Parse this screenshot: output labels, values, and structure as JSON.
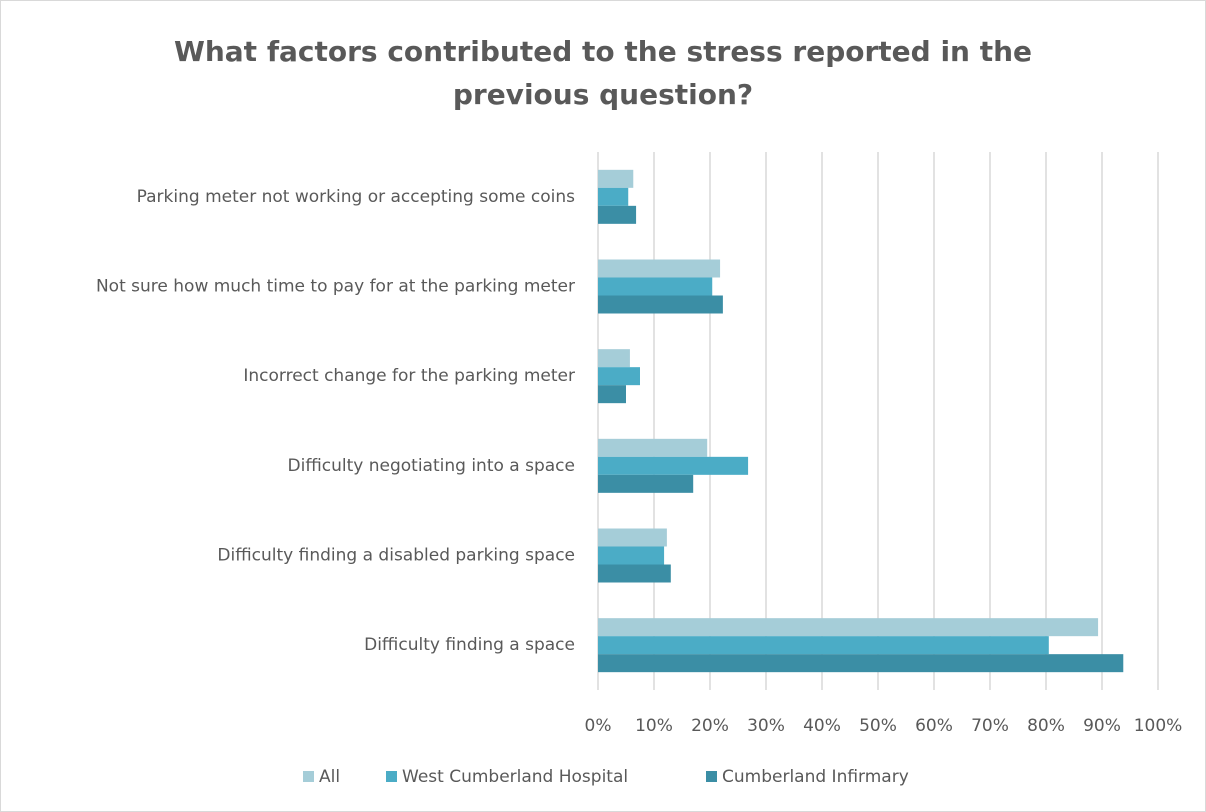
{
  "chart_data": {
    "type": "hbar",
    "title": "What factors contributed to the stress reported in the previous question?",
    "categories": [
      "Parking meter not working or accepting some coins",
      "Not sure how much time to pay for at the parking meter",
      "Incorrect change for the parking meter",
      "Difficulty negotiating into a space",
      "Difficulty finding a disabled parking space",
      "Difficulty finding a space"
    ],
    "series": [
      {
        "name": "All",
        "color": "#a5cdd8",
        "values": [
          6.3,
          21.8,
          5.7,
          19.5,
          12.3,
          89.3
        ]
      },
      {
        "name": "West Cumberland Hospital",
        "color": "#4bacc6",
        "values": [
          5.4,
          20.4,
          7.5,
          26.8,
          11.8,
          80.5
        ]
      },
      {
        "name": "Cumberland Infirmary",
        "color": "#3b8ea5",
        "values": [
          6.8,
          22.3,
          5.0,
          17.0,
          13.0,
          93.8
        ]
      }
    ],
    "xlim": [
      0,
      100
    ],
    "xticks": [
      {
        "value": 0,
        "label": "0%"
      },
      {
        "value": 10,
        "label": "10%"
      },
      {
        "value": 20,
        "label": "20%"
      },
      {
        "value": 30,
        "label": "30%"
      },
      {
        "value": 40,
        "label": "40%"
      },
      {
        "value": 50,
        "label": "50%"
      },
      {
        "value": 60,
        "label": "60%"
      },
      {
        "value": 70,
        "label": "70%"
      },
      {
        "value": 80,
        "label": "80%"
      },
      {
        "value": 90,
        "label": "90%"
      },
      {
        "value": 100,
        "label": "100%"
      }
    ],
    "grid": true,
    "legend": "bottom"
  }
}
